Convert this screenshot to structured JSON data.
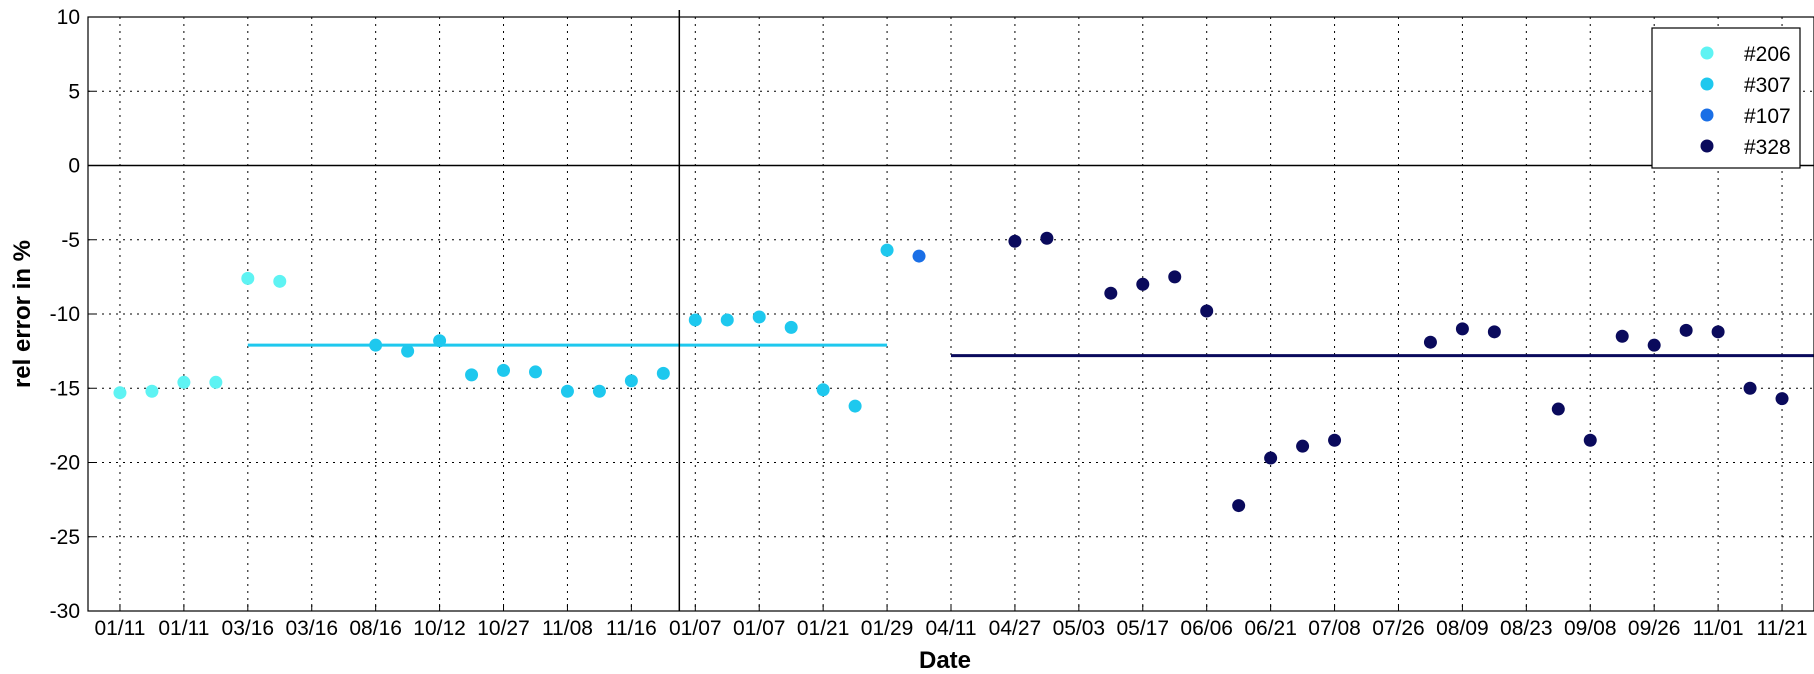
{
  "chart_data": {
    "type": "scatter",
    "title": "",
    "xlabel": "Date",
    "ylabel": "rel error in %",
    "ylim": [
      -30,
      10
    ],
    "yticks": [
      "10",
      "5",
      "0",
      "-5",
      "-10",
      "-15",
      "-20",
      "-25",
      "-30"
    ],
    "xlim": [
      0,
      54
    ],
    "x_tick_labels": [
      "01/11",
      "01/11",
      "03/16",
      "03/16",
      "08/16",
      "10/12",
      "10/27",
      "11/08",
      "11/16",
      "01/07",
      "01/07",
      "01/21",
      "01/29",
      "04/11",
      "04/27",
      "05/03",
      "05/17",
      "06/06",
      "06/21",
      "07/08",
      "07/26",
      "08/09",
      "08/23",
      "09/08",
      "09/26",
      "11/01",
      "11/21"
    ],
    "grid": true,
    "legend_position": "top-right",
    "series": [
      {
        "name": "#206",
        "color": "#5ef3f3",
        "points": [
          [
            1,
            -15.3
          ],
          [
            2,
            -15.2
          ],
          [
            3,
            -14.6
          ],
          [
            4,
            -14.6
          ],
          [
            5,
            -7.6
          ],
          [
            6,
            -7.8
          ]
        ]
      },
      {
        "name": "#307",
        "color": "#1ec8ee",
        "points": [
          [
            9,
            -12.1
          ],
          [
            10,
            -12.5
          ],
          [
            11,
            -11.8
          ],
          [
            12,
            -14.1
          ],
          [
            13,
            -13.8
          ],
          [
            14,
            -13.9
          ],
          [
            15,
            -15.2
          ],
          [
            16,
            -15.2
          ],
          [
            17,
            -14.5
          ],
          [
            18,
            -14.0
          ],
          [
            19,
            -10.4
          ],
          [
            20,
            -10.4
          ],
          [
            21,
            -10.2
          ],
          [
            22,
            -10.9
          ],
          [
            23,
            -15.1
          ],
          [
            24,
            -16.2
          ],
          [
            25,
            -5.7
          ]
        ]
      },
      {
        "name": "#107",
        "color": "#1a6fe6",
        "points": [
          [
            26,
            -6.1
          ]
        ]
      },
      {
        "name": "#328",
        "color": "#0a0a5c",
        "points": [
          [
            29,
            -5.1
          ],
          [
            30,
            -4.9
          ],
          [
            32,
            -8.6
          ],
          [
            33,
            -8.0
          ],
          [
            34,
            -7.5
          ],
          [
            35,
            -9.8
          ],
          [
            36,
            -22.9
          ],
          [
            37,
            -19.7
          ],
          [
            38,
            -18.9
          ],
          [
            39,
            -18.5
          ],
          [
            42,
            -11.9
          ],
          [
            43,
            -11.0
          ],
          [
            44,
            -11.2
          ],
          [
            46,
            -16.4
          ],
          [
            47,
            -18.5
          ],
          [
            48,
            -11.5
          ],
          [
            49,
            -12.1
          ],
          [
            50,
            -11.1
          ],
          [
            51,
            -11.2
          ],
          [
            52,
            -15.0
          ],
          [
            53,
            -15.7
          ]
        ]
      }
    ],
    "reference_lines": [
      {
        "y": -12.1,
        "x_range": [
          5,
          25
        ],
        "color": "#1ec8ee"
      },
      {
        "y": -12.8,
        "x_range": [
          27,
          54
        ],
        "color": "#0a0a5c"
      },
      {
        "y": 0,
        "x_range": [
          0,
          54
        ],
        "color": "#000000"
      }
    ],
    "vertical_line_x": 18.5
  }
}
